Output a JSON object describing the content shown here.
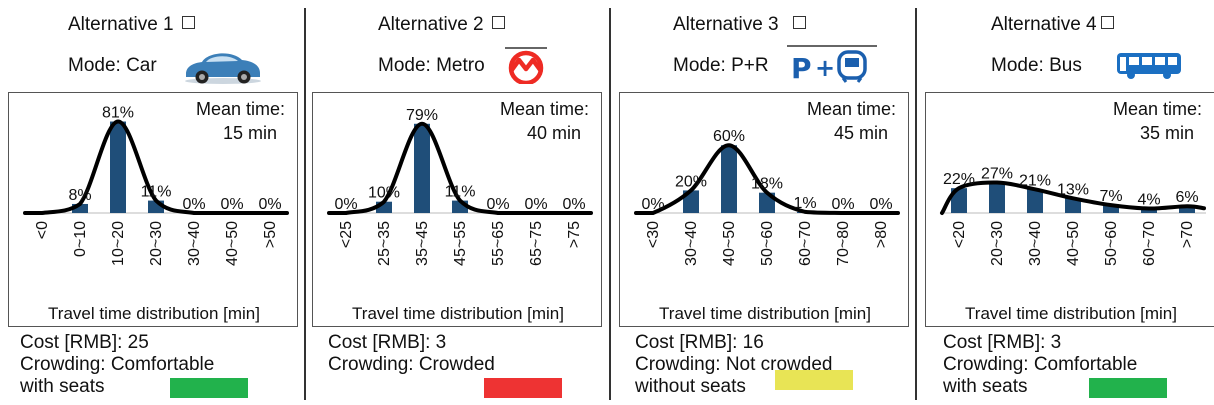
{
  "alternatives": [
    {
      "title": "Alternative 1",
      "mode": "Mode: Car",
      "icon": "car-icon",
      "mean_label": "Mean time:",
      "mean_value": "15 min",
      "xlabel": "Travel time distribution [min]",
      "cost": "Cost [RMB]: 25",
      "crowding_line1": "Crowding: Comfortable",
      "crowding_line2": "with seats",
      "crowding_color": "#22b24c",
      "chart_data": {
        "type": "bar",
        "categories": [
          "<0",
          "0~10",
          "10~20",
          "20~30",
          "30~40",
          "40~50",
          ">50"
        ],
        "values": [
          0,
          8,
          81,
          11,
          0,
          0,
          0
        ],
        "labels": [
          "",
          "8%",
          "81%",
          "11%",
          "0%",
          "0%",
          "0%"
        ],
        "xlabel": "Travel time distribution [min]",
        "curve": true
      }
    },
    {
      "title": "Alternative 2",
      "mode": "Mode: Metro",
      "icon": "metro-icon",
      "mean_label": "Mean time:",
      "mean_value": "40 min",
      "xlabel": "Travel time distribution  [min]",
      "cost": "Cost [RMB]: 3",
      "crowding_line1": "Crowding: Crowded",
      "crowding_line2": "",
      "crowding_color": "#ee3333",
      "chart_data": {
        "type": "bar",
        "categories": [
          "<25",
          "25~35",
          "35~45",
          "45~55",
          "55~65",
          "65~75",
          ">75"
        ],
        "values": [
          0,
          10,
          79,
          11,
          0,
          0,
          0
        ],
        "labels": [
          "0%",
          "10%",
          "79%",
          "11%",
          "0%",
          "0%",
          "0%"
        ],
        "xlabel": "Travel time distribution  [min]",
        "curve": true
      }
    },
    {
      "title": "Alternative 3",
      "mode": "Mode: P+R",
      "icon": "park-and-ride-icon",
      "mean_label": "Mean time:",
      "mean_value": "45 min",
      "xlabel": "Travel time distribution  [min]",
      "cost": "Cost [RMB]: 16",
      "crowding_line1": "Crowding: Not crowded",
      "crowding_line2": "without seats",
      "crowding_color": "#e8e455",
      "chart_data": {
        "type": "bar",
        "categories": [
          "<30",
          "30~40",
          "40~50",
          "50~60",
          "60~70",
          "70~80",
          ">80"
        ],
        "values": [
          0,
          20,
          60,
          18,
          1,
          0,
          0
        ],
        "labels": [
          "0%",
          "20%",
          "60%",
          "18%",
          "1%",
          "0%",
          "0%"
        ],
        "xlabel": "Travel time distribution  [min]",
        "curve": true
      }
    },
    {
      "title": "Alternative 4",
      "mode": "Mode: Bus",
      "icon": "bus-icon",
      "mean_label": "Mean time:",
      "mean_value": "35 min",
      "xlabel": "Travel time distribution  [min]",
      "cost": "Cost [RMB]: 3",
      "crowding_line1": "Crowding: Comfortable",
      "crowding_line2": "with seats",
      "crowding_color": "#22b24c",
      "chart_data": {
        "type": "bar",
        "categories": [
          "<20",
          "20~30",
          "30~40",
          "40~50",
          "50~60",
          "60~70",
          ">70"
        ],
        "values": [
          22,
          27,
          21,
          13,
          7,
          4,
          6
        ],
        "labels": [
          "22%",
          "27%",
          "21%",
          "13%",
          "7%",
          "4%",
          "6%"
        ],
        "xlabel": "Travel time distribution  [min]",
        "curve": true
      }
    }
  ],
  "colors": {
    "bar": "#1f4e79",
    "curve": "#000000"
  }
}
